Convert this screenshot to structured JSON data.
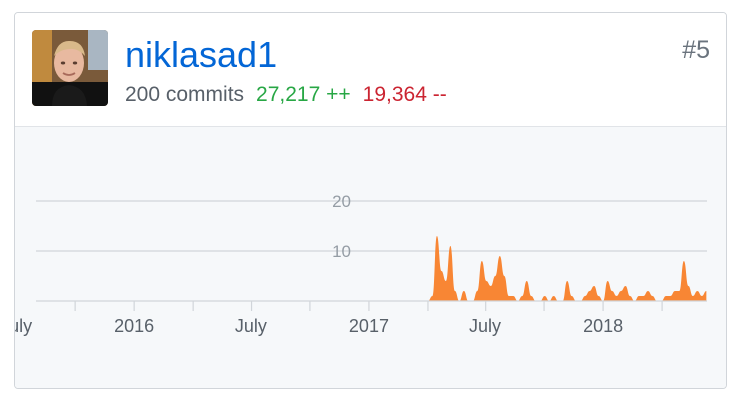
{
  "user": {
    "username": "niklasad1",
    "rank": "#5",
    "commits": "200 commits",
    "additions": "27,217 ++",
    "deletions": "19,364 --"
  },
  "colors": {
    "link": "#0366d6",
    "additions": "#28a745",
    "deletions": "#cb2431",
    "area_fill": "#f88634"
  },
  "chart_data": {
    "type": "area",
    "ylim": [
      0,
      20
    ],
    "yticks": [
      10,
      20
    ],
    "ytick_labels": [
      "10",
      "20"
    ],
    "xlim": [
      "2015-05-01",
      "2018-03-12"
    ],
    "xticks": [
      "2015-07-01",
      "2016-01-01",
      "2016-07-01",
      "2017-01-01",
      "2017-07-01",
      "2018-01-01"
    ],
    "xtick_labels": [
      "July",
      "2016",
      "July",
      "2017",
      "July",
      "2018"
    ],
    "grid": true,
    "series": [
      {
        "color": "#f88634",
        "x": [
          "2017-01-01",
          "2017-01-08",
          "2017-01-15",
          "2017-01-22",
          "2017-01-29",
          "2017-02-05",
          "2017-02-12",
          "2017-02-19",
          "2017-02-26",
          "2017-03-05",
          "2017-03-12",
          "2017-03-19",
          "2017-03-26",
          "2017-04-02",
          "2017-04-09",
          "2017-04-16",
          "2017-04-23",
          "2017-04-30",
          "2017-05-07",
          "2017-05-14",
          "2017-05-21",
          "2017-05-28",
          "2017-06-04",
          "2017-06-11",
          "2017-06-18",
          "2017-06-25",
          "2017-07-02",
          "2017-07-09",
          "2017-07-16",
          "2017-07-23",
          "2017-07-30",
          "2017-08-06",
          "2017-08-13",
          "2017-08-20",
          "2017-08-27",
          "2017-09-03",
          "2017-09-10",
          "2017-09-17",
          "2017-09-24",
          "2017-10-01",
          "2017-10-08",
          "2017-10-15",
          "2017-10-22",
          "2017-10-29",
          "2017-11-05",
          "2017-11-12",
          "2017-11-19",
          "2017-11-26",
          "2017-12-03",
          "2017-12-10",
          "2017-12-17",
          "2017-12-24",
          "2017-12-31",
          "2018-01-07",
          "2018-01-14",
          "2018-01-21",
          "2018-01-28",
          "2018-02-04",
          "2018-02-11",
          "2018-02-18",
          "2018-02-25",
          "2018-03-04",
          "2018-03-11"
        ],
        "y": [
          0,
          1,
          13,
          6,
          4,
          11,
          2,
          0,
          2,
          0,
          0,
          2,
          8,
          4,
          3,
          5,
          9,
          5,
          1,
          1,
          0,
          1,
          4,
          1,
          0,
          0,
          1,
          0,
          1,
          0,
          0,
          4,
          1,
          0,
          0,
          1,
          2,
          3,
          1,
          0,
          4,
          2,
          1,
          2,
          3,
          1,
          0,
          1,
          1,
          2,
          1,
          0,
          0,
          1,
          1,
          2,
          2,
          8,
          3,
          1,
          2,
          1,
          2
        ]
      }
    ]
  }
}
